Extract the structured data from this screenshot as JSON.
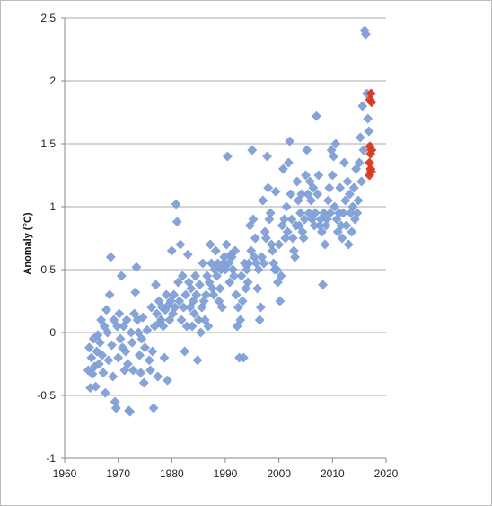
{
  "chart_data": {
    "type": "scatter",
    "title": "",
    "xlabel": "",
    "ylabel": "Anomaly (°C)",
    "xlim": [
      1960,
      2020
    ],
    "ylim": [
      -1,
      2.5
    ],
    "x_ticks": [
      1960,
      1970,
      1980,
      1990,
      2000,
      2010,
      2020
    ],
    "y_ticks": [
      -1,
      -0.5,
      0,
      0.5,
      1,
      1.5,
      2,
      2.5
    ],
    "x_tick_labels": [
      "1960",
      "1970",
      "1980",
      "1990",
      "2000",
      "2010",
      "2020"
    ],
    "y_tick_labels": [
      "-1",
      "-0.5",
      "0",
      "0.5",
      "1",
      "1.5",
      "2",
      "2.5"
    ],
    "grid": "horizontal",
    "legend": "none",
    "colors": {
      "main": "#7f9fd6",
      "highlight": "#d93a1e"
    },
    "series": [
      {
        "color": "#7f9fd6",
        "points": [
          [
            1964.4,
            -0.3
          ],
          [
            1964.6,
            -0.12
          ],
          [
            1964.8,
            -0.44
          ],
          [
            1965.0,
            -0.2
          ],
          [
            1965.2,
            -0.33
          ],
          [
            1965.4,
            -0.05
          ],
          [
            1965.6,
            -0.27
          ],
          [
            1965.8,
            -0.43
          ],
          [
            1966.0,
            -0.15
          ],
          [
            1966.2,
            -0.02
          ],
          [
            1966.4,
            -0.25
          ],
          [
            1966.6,
            -0.08
          ],
          [
            1966.8,
            0.1
          ],
          [
            1967.0,
            -0.18
          ],
          [
            1967.2,
            -0.32
          ],
          [
            1967.4,
            0.05
          ],
          [
            1967.6,
            -0.48
          ],
          [
            1967.8,
            0.18
          ],
          [
            1968.0,
            0.0
          ],
          [
            1968.2,
            -0.22
          ],
          [
            1968.4,
            0.3
          ],
          [
            1968.6,
            0.6
          ],
          [
            1968.8,
            -0.1
          ],
          [
            1969.0,
            -0.35
          ],
          [
            1969.2,
            0.1
          ],
          [
            1969.4,
            -0.55
          ],
          [
            1969.6,
            -0.6
          ],
          [
            1969.8,
            0.05
          ],
          [
            1970.0,
            -0.2
          ],
          [
            1970.2,
            0.15
          ],
          [
            1970.4,
            -0.05
          ],
          [
            1970.6,
            0.45
          ],
          [
            1970.8,
            -0.12
          ],
          [
            1971.0,
            0.05
          ],
          [
            1971.2,
            -0.3
          ],
          [
            1971.4,
            -0.15
          ],
          [
            1971.6,
            0.1
          ],
          [
            1971.8,
            -0.25
          ],
          [
            1972.0,
            -0.62
          ],
          [
            1972.2,
            -0.63
          ],
          [
            1972.4,
            0.0
          ],
          [
            1972.6,
            -0.08
          ],
          [
            1972.8,
            -0.3
          ],
          [
            1973.0,
            0.15
          ],
          [
            1973.2,
            0.32
          ],
          [
            1973.4,
            0.52
          ],
          [
            1973.6,
            0.1
          ],
          [
            1973.8,
            0.0
          ],
          [
            1974.0,
            -0.18
          ],
          [
            1974.2,
            -0.32
          ],
          [
            1974.4,
            -0.05
          ],
          [
            1974.6,
            0.12
          ],
          [
            1974.8,
            -0.4
          ],
          [
            1975.0,
            -0.12
          ],
          [
            1975.4,
            0.02
          ],
          [
            1975.8,
            -0.22
          ],
          [
            1976.0,
            -0.3
          ],
          [
            1976.2,
            0.2
          ],
          [
            1976.4,
            -0.15
          ],
          [
            1976.6,
            -0.6
          ],
          [
            1976.8,
            0.05
          ],
          [
            1977.0,
            0.38
          ],
          [
            1977.2,
            0.15
          ],
          [
            1977.4,
            -0.35
          ],
          [
            1977.6,
            0.25
          ],
          [
            1977.8,
            0.08
          ],
          [
            1978.0,
            0.1
          ],
          [
            1978.2,
            0.2
          ],
          [
            1978.4,
            0.05
          ],
          [
            1978.6,
            -0.2
          ],
          [
            1978.8,
            0.18
          ],
          [
            1979.0,
            0.3
          ],
          [
            1979.2,
            -0.38
          ],
          [
            1979.4,
            0.22
          ],
          [
            1979.6,
            0.1
          ],
          [
            1979.8,
            0.25
          ],
          [
            1980.0,
            0.65
          ],
          [
            1980.2,
            0.15
          ],
          [
            1980.4,
            0.3
          ],
          [
            1980.6,
            0.2
          ],
          [
            1980.8,
            1.02
          ],
          [
            1981.0,
            0.88
          ],
          [
            1981.2,
            0.4
          ],
          [
            1981.4,
            0.25
          ],
          [
            1981.6,
            0.7
          ],
          [
            1981.8,
            0.1
          ],
          [
            1982.0,
            0.45
          ],
          [
            1982.2,
            0.2
          ],
          [
            1982.4,
            -0.15
          ],
          [
            1982.6,
            0.3
          ],
          [
            1982.8,
            0.05
          ],
          [
            1983.0,
            0.62
          ],
          [
            1983.2,
            0.4
          ],
          [
            1983.4,
            0.2
          ],
          [
            1983.6,
            0.35
          ],
          [
            1983.8,
            0.05
          ],
          [
            1984.0,
            0.25
          ],
          [
            1984.2,
            0.15
          ],
          [
            1984.4,
            0.45
          ],
          [
            1984.6,
            0.3
          ],
          [
            1984.8,
            -0.22
          ],
          [
            1985.0,
            0.1
          ],
          [
            1985.2,
            0.38
          ],
          [
            1985.4,
            0.0
          ],
          [
            1985.6,
            0.2
          ],
          [
            1985.8,
            0.55
          ],
          [
            1986.0,
            0.25
          ],
          [
            1986.2,
            0.1
          ],
          [
            1986.4,
            0.3
          ],
          [
            1986.6,
            0.45
          ],
          [
            1986.8,
            0.05
          ],
          [
            1987.0,
            0.4
          ],
          [
            1987.2,
            0.7
          ],
          [
            1987.4,
            0.55
          ],
          [
            1987.6,
            0.35
          ],
          [
            1987.8,
            0.3
          ],
          [
            1988.0,
            0.5
          ],
          [
            1988.2,
            0.65
          ],
          [
            1988.4,
            0.45
          ],
          [
            1988.6,
            0.55
          ],
          [
            1988.8,
            0.25
          ],
          [
            1989.0,
            0.35
          ],
          [
            1989.2,
            0.5
          ],
          [
            1989.4,
            0.2
          ],
          [
            1989.6,
            0.55
          ],
          [
            1989.8,
            0.6
          ],
          [
            1990.0,
            0.5
          ],
          [
            1990.2,
            0.7
          ],
          [
            1990.4,
            1.4
          ],
          [
            1990.6,
            0.55
          ],
          [
            1990.8,
            0.4
          ],
          [
            1991.0,
            0.62
          ],
          [
            1991.2,
            0.6
          ],
          [
            1991.4,
            0.5
          ],
          [
            1991.6,
            0.45
          ],
          [
            1991.8,
            0.65
          ],
          [
            1992.0,
            0.3
          ],
          [
            1992.2,
            0.05
          ],
          [
            1992.4,
            0.2
          ],
          [
            1992.6,
            -0.2
          ],
          [
            1992.8,
            0.1
          ],
          [
            1993.0,
            0.45
          ],
          [
            1993.2,
            0.25
          ],
          [
            1993.4,
            -0.2
          ],
          [
            1993.6,
            0.55
          ],
          [
            1993.8,
            0.35
          ],
          [
            1994.0,
            0.5
          ],
          [
            1994.2,
            0.4
          ],
          [
            1994.4,
            0.55
          ],
          [
            1994.6,
            0.85
          ],
          [
            1994.8,
            0.65
          ],
          [
            1995.0,
            1.45
          ],
          [
            1995.2,
            0.9
          ],
          [
            1995.4,
            0.6
          ],
          [
            1995.6,
            0.75
          ],
          [
            1995.8,
            0.55
          ],
          [
            1996.0,
            0.35
          ],
          [
            1996.2,
            0.5
          ],
          [
            1996.4,
            0.1
          ],
          [
            1996.6,
            0.2
          ],
          [
            1996.8,
            0.6
          ],
          [
            1997.0,
            1.05
          ],
          [
            1997.2,
            0.55
          ],
          [
            1997.4,
            0.8
          ],
          [
            1997.6,
            0.75
          ],
          [
            1997.8,
            1.4
          ],
          [
            1998.0,
            1.15
          ],
          [
            1998.2,
            0.9
          ],
          [
            1998.4,
            0.95
          ],
          [
            1998.6,
            0.7
          ],
          [
            1998.8,
            0.65
          ],
          [
            1999.0,
            0.55
          ],
          [
            1999.2,
            0.5
          ],
          [
            1999.4,
            1.12
          ],
          [
            1999.6,
            0.5
          ],
          [
            1999.8,
            0.4
          ],
          [
            2000.0,
            0.7
          ],
          [
            2000.2,
            0.25
          ],
          [
            2000.4,
            0.45
          ],
          [
            2000.6,
            0.85
          ],
          [
            2000.8,
            1.3
          ],
          [
            2001.0,
            0.9
          ],
          [
            2001.2,
            0.75
          ],
          [
            2001.4,
            1.0
          ],
          [
            2001.6,
            0.8
          ],
          [
            2001.8,
            1.35
          ],
          [
            2002.0,
            1.52
          ],
          [
            2002.2,
            1.1
          ],
          [
            2002.4,
            0.9
          ],
          [
            2002.6,
            0.75
          ],
          [
            2002.8,
            0.65
          ],
          [
            2003.0,
            0.6
          ],
          [
            2003.2,
            0.85
          ],
          [
            2003.4,
            1.2
          ],
          [
            2003.6,
            1.05
          ],
          [
            2003.8,
            0.85
          ],
          [
            2004.0,
            0.95
          ],
          [
            2004.2,
            1.1
          ],
          [
            2004.4,
            0.8
          ],
          [
            2004.6,
            0.75
          ],
          [
            2004.8,
            0.9
          ],
          [
            2005.0,
            1.25
          ],
          [
            2005.2,
            1.45
          ],
          [
            2005.4,
            1.1
          ],
          [
            2005.6,
            0.95
          ],
          [
            2005.8,
            1.2
          ],
          [
            2006.0,
            1.05
          ],
          [
            2006.2,
            0.9
          ],
          [
            2006.4,
            1.15
          ],
          [
            2006.6,
            0.85
          ],
          [
            2006.8,
            0.95
          ],
          [
            2007.0,
            1.72
          ],
          [
            2007.2,
            1.1
          ],
          [
            2007.4,
            1.25
          ],
          [
            2007.6,
            0.85
          ],
          [
            2007.8,
            0.9
          ],
          [
            2008.0,
            0.8
          ],
          [
            2008.2,
            0.38
          ],
          [
            2008.4,
            0.95
          ],
          [
            2008.6,
            0.7
          ],
          [
            2008.8,
            0.85
          ],
          [
            2009.0,
            0.9
          ],
          [
            2009.2,
            1.05
          ],
          [
            2009.4,
            1.15
          ],
          [
            2009.6,
            0.95
          ],
          [
            2009.8,
            1.45
          ],
          [
            2010.0,
            1.25
          ],
          [
            2010.2,
            1.4
          ],
          [
            2010.4,
            1.0
          ],
          [
            2010.6,
            1.5
          ],
          [
            2010.8,
            0.9
          ],
          [
            2011.0,
            0.8
          ],
          [
            2011.2,
            0.95
          ],
          [
            2011.4,
            1.15
          ],
          [
            2011.6,
            0.85
          ],
          [
            2011.8,
            0.75
          ],
          [
            2012.0,
            0.95
          ],
          [
            2012.2,
            1.35
          ],
          [
            2012.4,
            1.05
          ],
          [
            2012.6,
            0.85
          ],
          [
            2012.8,
            1.2
          ],
          [
            2013.0,
            0.7
          ],
          [
            2013.2,
            1.1
          ],
          [
            2013.4,
            0.95
          ],
          [
            2013.6,
            0.8
          ],
          [
            2013.8,
            1.0
          ],
          [
            2014.0,
            1.15
          ],
          [
            2014.2,
            0.9
          ],
          [
            2014.4,
            1.3
          ],
          [
            2014.6,
            0.95
          ],
          [
            2014.8,
            1.05
          ],
          [
            2015.0,
            1.35
          ],
          [
            2015.2,
            1.55
          ],
          [
            2015.4,
            1.2
          ],
          [
            2015.6,
            1.8
          ],
          [
            2015.8,
            1.45
          ],
          [
            2016.0,
            2.4
          ],
          [
            2016.2,
            2.37
          ],
          [
            2016.4,
            1.9
          ],
          [
            2016.6,
            1.7
          ],
          [
            2016.8,
            1.6
          ]
        ]
      },
      {
        "color": "#d93a1e",
        "points": [
          [
            2016.9,
            1.25
          ],
          [
            2016.9,
            1.35
          ],
          [
            2017.0,
            1.48
          ],
          [
            2017.0,
            1.85
          ],
          [
            2017.1,
            1.3
          ],
          [
            2017.1,
            1.42
          ],
          [
            2017.2,
            1.9
          ],
          [
            2017.2,
            1.28
          ],
          [
            2017.3,
            1.83
          ],
          [
            2017.3,
            1.45
          ]
        ]
      }
    ]
  }
}
